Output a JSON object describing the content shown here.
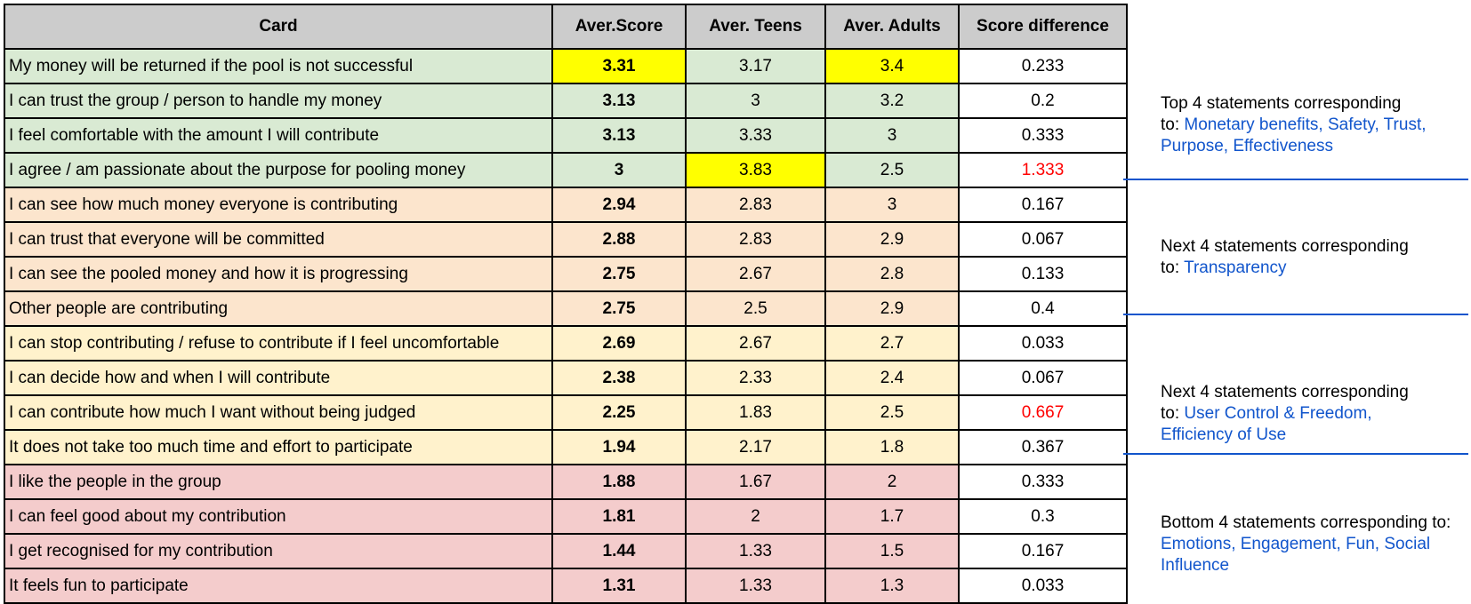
{
  "table": {
    "headers": [
      "Card",
      "Aver.Score",
      "Aver. Teens",
      "Aver. Adults",
      "Score difference"
    ],
    "groups": [
      {
        "rows": [
          {
            "card": "My money will be returned if the pool is not successful",
            "score": "3.31",
            "teens": "3.17",
            "adults": "3.4",
            "diff": "0.233"
          },
          {
            "card": "I can trust the group / person to handle my money",
            "score": "3.13",
            "teens": "3",
            "adults": "3.2",
            "diff": "0.2"
          },
          {
            "card": "I feel comfortable with the amount I will contribute",
            "score": "3.13",
            "teens": "3.33",
            "adults": "3",
            "diff": "0.333"
          },
          {
            "card": "I agree / am passionate about the purpose for pooling money",
            "score": "3",
            "teens": "3.83",
            "adults": "2.5",
            "diff": "1.333"
          }
        ]
      },
      {
        "rows": [
          {
            "card": "I can see how much money everyone is contributing",
            "score": "2.94",
            "teens": "2.83",
            "adults": "3",
            "diff": "0.167"
          },
          {
            "card": "I can trust that everyone will be committed",
            "score": "2.88",
            "teens": "2.83",
            "adults": "2.9",
            "diff": "0.067"
          },
          {
            "card": "I can see the pooled money and how it is progressing",
            "score": "2.75",
            "teens": "2.67",
            "adults": "2.8",
            "diff": "0.133"
          },
          {
            "card": "Other people are contributing",
            "score": "2.75",
            "teens": "2.5",
            "adults": "2.9",
            "diff": "0.4"
          }
        ]
      },
      {
        "rows": [
          {
            "card": "I can stop contributing / refuse to contribute if I feel uncomfortable",
            "score": "2.69",
            "teens": "2.67",
            "adults": "2.7",
            "diff": "0.033"
          },
          {
            "card": "I can decide how and when I will contribute",
            "score": "2.38",
            "teens": "2.33",
            "adults": "2.4",
            "diff": "0.067"
          },
          {
            "card": "I can contribute how much I want without being judged",
            "score": "2.25",
            "teens": "1.83",
            "adults": "2.5",
            "diff": "0.667"
          },
          {
            "card": "It does not take too much time and effort to participate",
            "score": "1.94",
            "teens": "2.17",
            "adults": "1.8",
            "diff": "0.367"
          }
        ]
      },
      {
        "rows": [
          {
            "card": "I like the people in the group",
            "score": "1.88",
            "teens": "1.67",
            "adults": "2",
            "diff": "0.333"
          },
          {
            "card": "I can feel good about my contribution",
            "score": "1.81",
            "teens": "2",
            "adults": "1.7",
            "diff": "0.3"
          },
          {
            "card": "I get recognised for my contribution",
            "score": "1.44",
            "teens": "1.33",
            "adults": "1.5",
            "diff": "0.167"
          },
          {
            "card": "It feels fun to participate",
            "score": "1.31",
            "teens": "1.33",
            "adults": "1.3",
            "diff": "0.033"
          }
        ]
      }
    ]
  },
  "notes": [
    {
      "line1": "Top 4 statements corresponding",
      "prefix": "to: ",
      "blue1": "Monetary benefits, Safety, Trust,",
      "blue2": "Purpose, Effectiveness"
    },
    {
      "line1": "Next 4 statements corresponding",
      "prefix": "to: ",
      "blue1": "Transparency"
    },
    {
      "line1": "Next 4 statements corresponding",
      "prefix": "to: ",
      "blue1": "User Control & Freedom,",
      "blue2": "Efficiency of Use"
    },
    {
      "line1": "Bottom 4 statements corresponding to:",
      "blue1": "Emotions, Engagement, Fun, Social",
      "blue2": "Influence"
    }
  ],
  "colors": {
    "header_bg": "#cccccc",
    "group_bg": [
      "#d9ead3",
      "#fce5cd",
      "#fff2cc",
      "#f4cccc"
    ],
    "highlight": "#ffff00",
    "link_blue": "#1155cc",
    "alert_red": "#ff0000"
  }
}
